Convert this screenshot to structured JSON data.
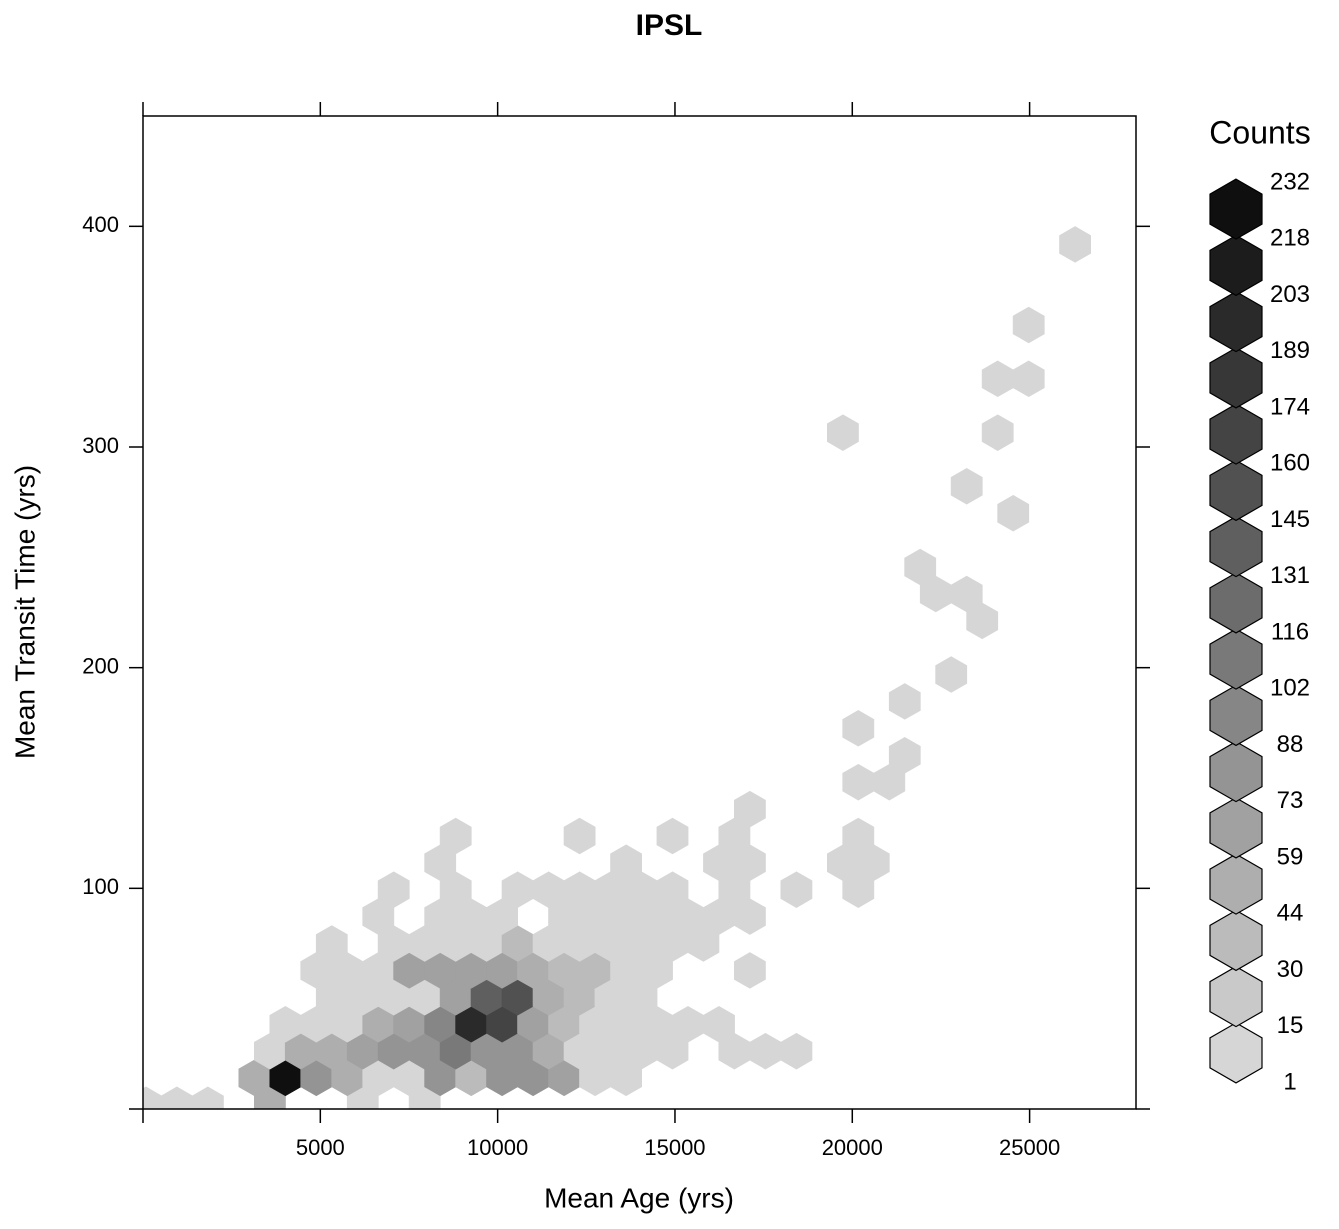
{
  "chart_data": {
    "type": "hexbin",
    "title": "IPSL",
    "x_label": "Mean Age (yrs)",
    "y_label": "Mean Transit Time (yrs)",
    "xlim": [
      0,
      28000
    ],
    "xticks": [
      5000,
      10000,
      15000,
      20000,
      25000
    ],
    "ylim": [
      0,
      450
    ],
    "yticks": [
      100,
      200,
      300,
      400
    ],
    "colorscale": {
      "low": "#d6d6d6",
      "high": "#0f0f0f"
    },
    "legend": {
      "title": "Counts",
      "breaks": [
        1,
        15,
        30,
        44,
        59,
        73,
        88,
        102,
        116,
        131,
        145,
        160,
        174,
        189,
        203,
        218,
        232
      ]
    },
    "x": [
      84,
      957,
      1831,
      3577,
      6197,
      7944,
      3141,
      4014,
      4888,
      5761,
      6634,
      7507,
      8381,
      9254,
      10127,
      11001,
      11874,
      12747,
      13621,
      3577,
      4450,
      5324,
      6197,
      7070,
      7944,
      8817,
      9690,
      10563,
      11437,
      12310,
      13183,
      14057,
      14930,
      16677,
      17550,
      18423,
      4014,
      4888,
      5761,
      6634,
      7507,
      8381,
      9254,
      10127,
      11001,
      11874,
      12747,
      13621,
      14494,
      15367,
      16241,
      5324,
      6197,
      7070,
      7944,
      8817,
      9690,
      10563,
      11437,
      12310,
      13183,
      14057,
      4888,
      5761,
      6634,
      7507,
      8381,
      9254,
      10127,
      11001,
      11874,
      12747,
      13621,
      14494,
      17114,
      5324,
      7070,
      7944,
      8817,
      9690,
      10563,
      11437,
      12310,
      13183,
      14057,
      14930,
      15803,
      6634,
      8381,
      9254,
      10127,
      11874,
      12747,
      13621,
      14494,
      15367,
      16241,
      17114,
      7070,
      8817,
      10563,
      11437,
      12310,
      13183,
      14057,
      14930,
      16677,
      18423,
      20170,
      8381,
      13621,
      16241,
      17114,
      19734,
      20607,
      8817,
      12310,
      14930,
      16677,
      20170,
      17114,
      20170,
      21043,
      21480,
      20170,
      21480,
      22790,
      23663,
      22354,
      23227,
      21916,
      24536,
      23227,
      19734,
      24100,
      24100,
      24974,
      24974,
      26283
    ],
    "y": [
      1.9,
      1.9,
      1.9,
      1.9,
      1.9,
      1.9,
      14.1,
      14.1,
      14.1,
      14.1,
      14.1,
      14.1,
      14.1,
      14.1,
      14.1,
      14.1,
      14.1,
      14.1,
      14.1,
      26.2,
      26.2,
      26.2,
      26.2,
      26.2,
      26.2,
      26.2,
      26.2,
      26.2,
      26.2,
      26.2,
      26.2,
      26.2,
      26.2,
      26.2,
      26.2,
      26.2,
      38.4,
      38.4,
      38.4,
      38.4,
      38.4,
      38.4,
      38.4,
      38.4,
      38.4,
      38.4,
      38.4,
      38.4,
      38.4,
      38.4,
      38.4,
      50.6,
      50.6,
      50.6,
      50.6,
      50.6,
      50.6,
      50.6,
      50.6,
      50.6,
      50.6,
      50.6,
      62.8,
      62.8,
      62.8,
      62.8,
      62.8,
      62.8,
      62.8,
      62.8,
      62.8,
      62.8,
      62.8,
      62.8,
      62.8,
      75.0,
      75.0,
      75.0,
      75.0,
      75.0,
      75.0,
      75.0,
      75.0,
      75.0,
      75.0,
      75.0,
      75.0,
      87.2,
      87.2,
      87.2,
      87.2,
      87.2,
      87.2,
      87.2,
      87.2,
      87.2,
      87.2,
      87.2,
      99.4,
      99.4,
      99.4,
      99.4,
      99.4,
      99.4,
      99.4,
      99.4,
      99.4,
      99.4,
      99.4,
      111.6,
      111.6,
      111.6,
      111.6,
      111.6,
      111.6,
      123.7,
      123.7,
      123.7,
      123.7,
      123.7,
      135.9,
      148.1,
      148.1,
      160.3,
      172.5,
      184.7,
      196.9,
      221.2,
      233.4,
      233.4,
      245.6,
      270.0,
      282.2,
      306.5,
      306.5,
      330.9,
      330.9,
      355.3,
      391.8
    ],
    "counts": [
      5,
      5,
      5,
      50,
      5,
      5,
      50,
      230,
      80,
      50,
      5,
      5,
      80,
      35,
      80,
      80,
      65,
      5,
      5,
      5,
      50,
      50,
      65,
      80,
      80,
      110,
      80,
      80,
      50,
      5,
      5,
      5,
      5,
      5,
      5,
      5,
      5,
      5,
      5,
      50,
      65,
      95,
      200,
      160,
      65,
      35,
      5,
      5,
      5,
      5,
      5,
      5,
      5,
      5,
      5,
      65,
      135,
      150,
      50,
      35,
      5,
      5,
      5,
      5,
      5,
      65,
      65,
      65,
      65,
      50,
      35,
      35,
      5,
      5,
      5,
      5,
      5,
      5,
      5,
      5,
      35,
      5,
      5,
      5,
      5,
      5,
      5,
      5,
      5,
      5,
      5,
      5,
      5,
      5,
      5,
      5,
      5,
      5,
      5,
      5,
      5,
      5,
      5,
      5,
      5,
      5,
      5,
      5,
      5,
      5,
      5,
      5,
      5,
      5,
      5,
      5,
      5,
      5,
      5,
      5,
      5,
      5,
      5,
      5,
      5,
      5,
      5,
      5,
      5,
      5,
      5,
      5,
      5,
      5,
      5,
      5,
      5,
      5,
      5
    ]
  }
}
